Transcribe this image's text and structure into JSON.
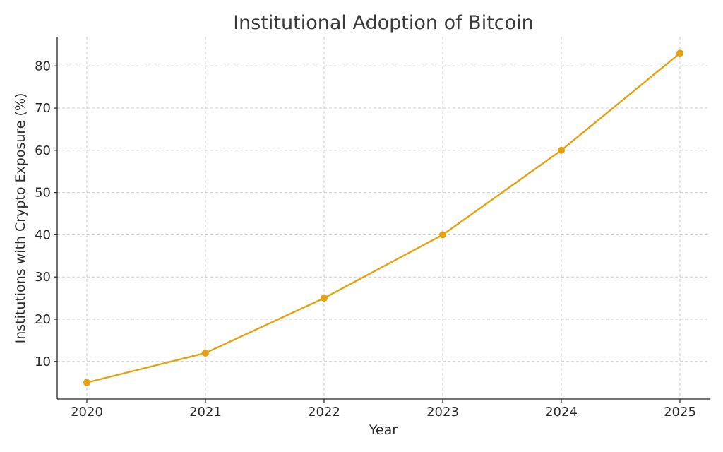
{
  "chart_data": {
    "type": "line",
    "title": "Institutional Adoption of Bitcoin",
    "xlabel": "Year",
    "ylabel": "Institutions with Crypto Exposure (%)",
    "x": [
      "2020",
      "2021",
      "2022",
      "2023",
      "2024",
      "2025"
    ],
    "series": [
      {
        "values": [
          5,
          12,
          25,
          40,
          60,
          83
        ],
        "color": "#e6a110",
        "marker": "circle"
      }
    ],
    "yticks": [
      10,
      20,
      30,
      40,
      50,
      60,
      70,
      80
    ],
    "ylim": [
      1.1,
      86.9
    ],
    "grid": true,
    "legend": "none"
  }
}
